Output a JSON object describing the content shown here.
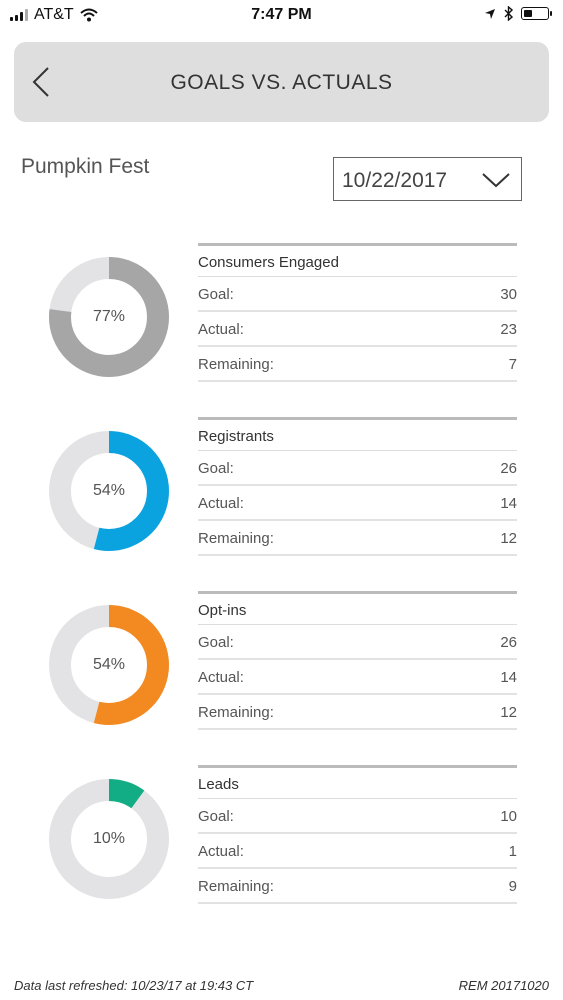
{
  "status_bar": {
    "carrier": "AT&T",
    "time": "7:47 PM"
  },
  "header": {
    "title": "GOALS VS. ACTUALS",
    "back_icon": "chevron-left-icon"
  },
  "event": {
    "name": "Pumpkin Fest"
  },
  "date_select": {
    "value": "10/22/2017",
    "icon": "chevron-down-icon"
  },
  "track_color": "#e3e3e5",
  "metrics": [
    {
      "title": "Consumers Engaged",
      "percent_label": "77%",
      "fraction": 0.77,
      "color": "#a6a6a6",
      "goal_label": "Goal:",
      "goal": "30",
      "actual_label": "Actual:",
      "actual": "23",
      "remaining_label": "Remaining:",
      "remaining": "7"
    },
    {
      "title": "Registrants",
      "percent_label": "54%",
      "fraction": 0.54,
      "color": "#0aa3e0",
      "goal_label": "Goal:",
      "goal": "26",
      "actual_label": "Actual:",
      "actual": "14",
      "remaining_label": "Remaining:",
      "remaining": "12"
    },
    {
      "title": "Opt-ins",
      "percent_label": "54%",
      "fraction": 0.54,
      "color": "#f28a21",
      "goal_label": "Goal:",
      "goal": "26",
      "actual_label": "Actual:",
      "actual": "14",
      "remaining_label": "Remaining:",
      "remaining": "12"
    },
    {
      "title": "Leads",
      "percent_label": "10%",
      "fraction": 0.1,
      "color": "#12ad84",
      "goal_label": "Goal:",
      "goal": "10",
      "actual_label": "Actual:",
      "actual": "1",
      "remaining_label": "Remaining:",
      "remaining": "9"
    }
  ],
  "footer": {
    "refreshed": "Data last refreshed: 10/23/17 at 19:43 CT",
    "version": "REM 20171020"
  }
}
